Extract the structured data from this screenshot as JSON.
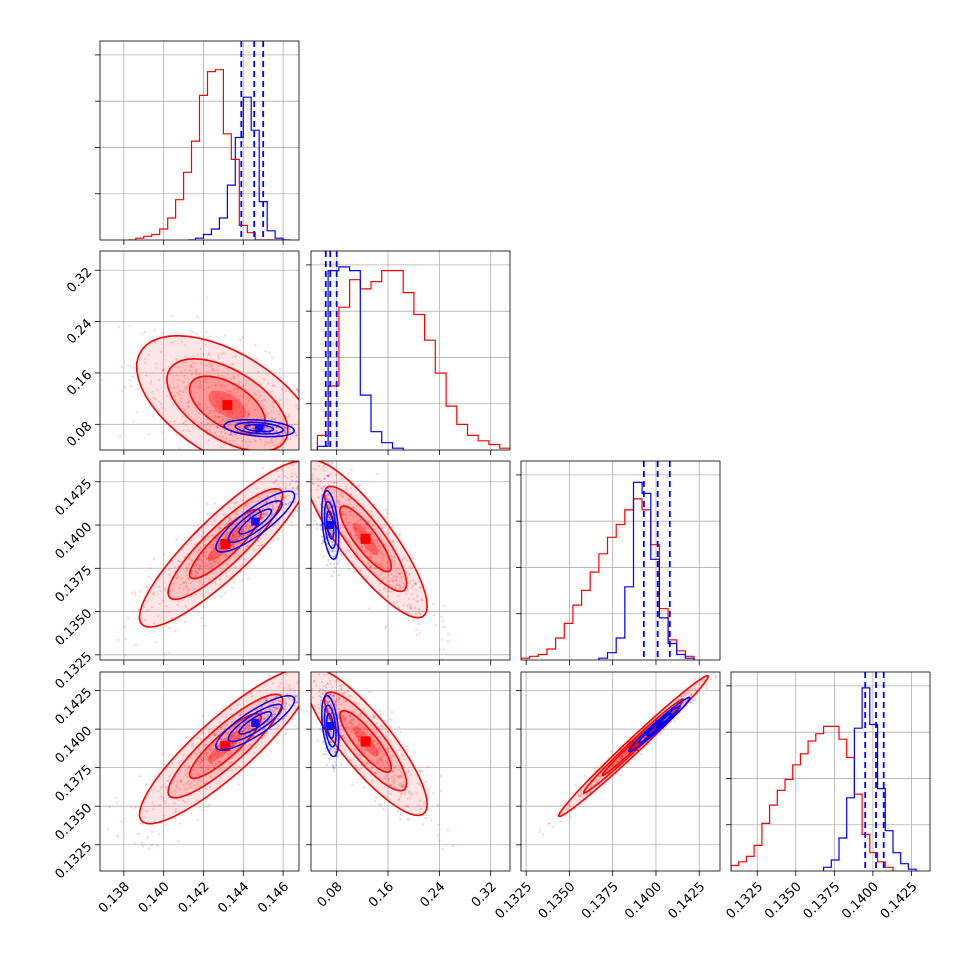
{
  "colors": {
    "series_a": "#ff0000",
    "series_b": "#0000ff",
    "grid": "#b0b0b0",
    "frame": "#000000"
  },
  "chart_data": {
    "type": "corner",
    "title": "",
    "n_parameters": 4,
    "grid": true,
    "series": [
      {
        "color": "#ff0000",
        "kind": "posterior"
      },
      {
        "color": "#0000ff",
        "kind": "posterior",
        "quantile_lines": "dashed"
      }
    ],
    "parameters": [
      {
        "range": [
          0.1368,
          0.1468
        ],
        "ticks": [
          0.138,
          0.14,
          0.142,
          0.144,
          0.146
        ],
        "tick_labels": [
          "0.138",
          "0.140",
          "0.142",
          "0.144",
          "0.146"
        ]
      },
      {
        "range": [
          0.04,
          0.35
        ],
        "ticks": [
          0.08,
          0.16,
          0.24,
          0.32
        ],
        "tick_labels": [
          "0.08",
          "0.16",
          "0.24",
          "0.32"
        ]
      },
      {
        "range": [
          0.1322,
          0.1437
        ],
        "ticks": [
          0.1325,
          0.135,
          0.1375,
          0.14,
          0.1425
        ],
        "tick_labels": [
          "0.1325",
          "0.1350",
          "0.1375",
          "0.1400",
          "0.1425"
        ]
      },
      {
        "range": [
          0.1308,
          0.1437
        ],
        "ticks": [
          0.1325,
          0.135,
          0.1375,
          0.14,
          0.1425
        ],
        "tick_labels": [
          "0.1325",
          "0.1350",
          "0.1375",
          "0.1400",
          "0.1425"
        ]
      }
    ],
    "diagonal": [
      {
        "param": 0,
        "red_hist": {
          "edges_start": 0.1382,
          "bin_width": 0.0004,
          "counts": [
            0,
            1,
            2,
            3,
            6,
            12,
            22,
            37,
            54,
            79,
            92,
            93,
            58,
            44,
            8,
            4,
            0,
            0,
            0,
            0
          ]
        },
        "blue_hist": {
          "edges_start": 0.1412,
          "bin_width": 0.0004,
          "counts": [
            0,
            1,
            3,
            6,
            12,
            30,
            56,
            78,
            60,
            21,
            5,
            1,
            0
          ]
        },
        "blue_quantiles": [
          0.1439,
          0.14455,
          0.145
        ]
      },
      {
        "param": 1,
        "red_hist": {
          "edges_start": 0.05,
          "bin_width": 0.0167,
          "counts": [
            8,
            35,
            78,
            93,
            88,
            92,
            98,
            98,
            86,
            74,
            60,
            42,
            24,
            14,
            8,
            5,
            3,
            1
          ]
        },
        "blue_hist": {
          "edges_start": 0.05,
          "bin_width": 0.0167,
          "counts": [
            2,
            98,
            100,
            98,
            30,
            10,
            4,
            1
          ]
        },
        "blue_quantiles": [
          0.063,
          0.07,
          0.08
        ]
      },
      {
        "param": 2,
        "red_hist": {
          "edges_start": 0.1322,
          "bin_width": 0.0005,
          "counts": [
            1,
            2,
            3,
            6,
            12,
            20,
            30,
            38,
            48,
            58,
            67,
            74,
            82,
            88,
            82,
            63,
            28,
            11,
            5,
            2
          ]
        },
        "blue_hist": {
          "edges_start": 0.1367,
          "bin_width": 0.0005,
          "counts": [
            1,
            4,
            12,
            40,
            97,
            91,
            55,
            23,
            9,
            3,
            1
          ]
        },
        "blue_quantiles": [
          0.1393,
          0.1401,
          0.1408
        ]
      },
      {
        "param": 3,
        "red_hist": {
          "edges_start": 0.1308,
          "bin_width": 0.0005,
          "counts": [
            3,
            5,
            8,
            14,
            26,
            36,
            44,
            50,
            58,
            64,
            71,
            75,
            79,
            79,
            72,
            62,
            42,
            20,
            10,
            5,
            2
          ]
        },
        "blue_hist": {
          "edges_start": 0.1368,
          "bin_width": 0.0005,
          "counts": [
            2,
            6,
            18,
            40,
            78,
            100,
            80,
            45,
            22,
            10,
            4,
            1
          ]
        },
        "blue_quantiles": [
          0.1395,
          0.1402,
          0.1407
        ]
      }
    ],
    "pairs": [
      {
        "x": 0,
        "y": 1,
        "red": {
          "center": [
            0.1432,
            0.11
          ],
          "sigma": [
            0.0019,
            0.045
          ],
          "rho": -0.55
        },
        "blue": {
          "center": [
            0.1448,
            0.074
          ],
          "sigma": [
            0.0008,
            0.006
          ],
          "rho": -0.3
        }
      },
      {
        "x": 0,
        "y": 2,
        "red": {
          "center": [
            0.1431,
            0.1389
          ],
          "sigma": [
            0.0018,
            0.002
          ],
          "rho": 0.88
        },
        "blue": {
          "center": [
            0.1446,
            0.1402
          ],
          "sigma": [
            0.0009,
            0.0008
          ],
          "rho": 0.85
        }
      },
      {
        "x": 0,
        "y": 3,
        "red": {
          "center": [
            0.1431,
            0.1389
          ],
          "sigma": [
            0.0018,
            0.0021
          ],
          "rho": 0.88
        },
        "blue": {
          "center": [
            0.1446,
            0.1404
          ],
          "sigma": [
            0.0009,
            0.0008
          ],
          "rho": 0.85
        }
      },
      {
        "x": 1,
        "y": 2,
        "red": {
          "center": [
            0.125,
            0.1392
          ],
          "sigma": [
            0.04,
            0.0019
          ],
          "rho": -0.85
        },
        "blue": {
          "center": [
            0.07,
            0.14
          ],
          "sigma": [
            0.006,
            0.0009
          ],
          "rho": -0.4
        }
      },
      {
        "x": 1,
        "y": 3,
        "red": {
          "center": [
            0.125,
            0.1392
          ],
          "sigma": [
            0.04,
            0.002
          ],
          "rho": -0.85
        },
        "blue": {
          "center": [
            0.07,
            0.1402
          ],
          "sigma": [
            0.006,
            0.0009
          ],
          "rho": -0.4
        }
      },
      {
        "x": 2,
        "y": 3,
        "red": {
          "center": [
            0.1387,
            0.1389
          ],
          "sigma": [
            0.0018,
            0.0019
          ],
          "rho": 0.99
        },
        "blue": {
          "center": [
            0.1402,
            0.1403
          ],
          "sigma": [
            0.0008,
            0.0008
          ],
          "rho": 0.98
        }
      }
    ]
  }
}
